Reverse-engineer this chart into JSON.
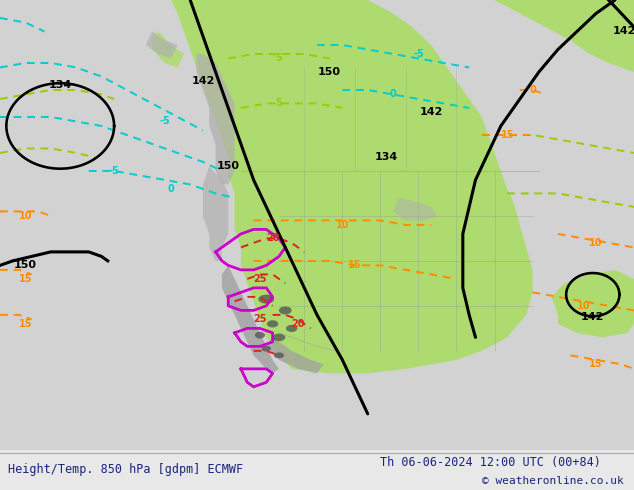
{
  "title_left": "Height/Temp. 850 hPa [gdpm] ECMWF",
  "title_right": "Th 06-06-2024 12:00 UTC (00+84)",
  "copyright": "© weatheronline.co.uk",
  "fig_width": 6.34,
  "fig_height": 4.9,
  "dpi": 100,
  "text_color": "#1a237e",
  "bg_color": "#d8d8d8",
  "footer_bg": "#e8e8e8",
  "green_color": "#aadd66",
  "gray_topo": "#b0b0b0",
  "font_size_title": 8.5,
  "font_size_copy": 8.0,
  "black_lw": 2.2,
  "temp_lw": 1.4,
  "cyan_color": "#00cccc",
  "green_dash_color": "#99cc00",
  "orange_color": "#ff8c00",
  "red_color": "#dd2222",
  "magenta_color": "#cc00cc"
}
